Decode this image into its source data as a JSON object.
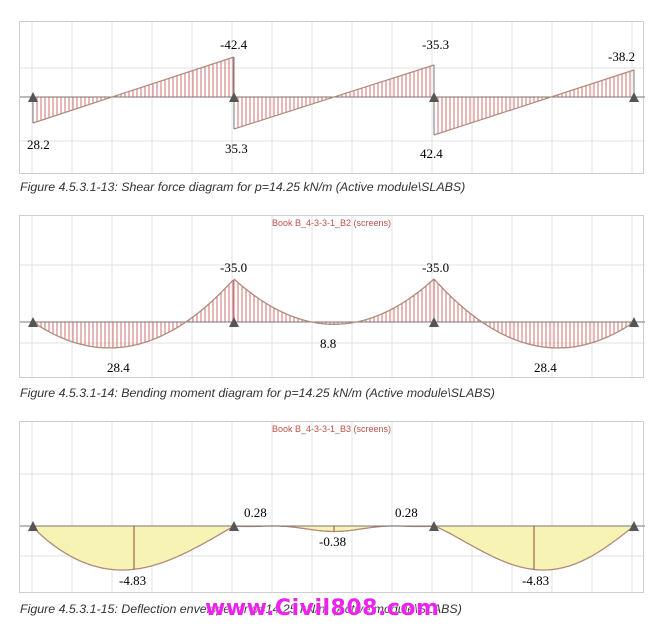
{
  "figures": [
    {
      "caption": "Figure 4.5.3.1-13: Shear force diagram for p=14.25 kN/m (Active module\\SLABS)",
      "panel_title": "",
      "values": {
        "v1": "-42.4",
        "v2": "-35.3",
        "v3": "-38.2",
        "v4": "28.2",
        "v5": "35.3",
        "v6": "42.4"
      }
    },
    {
      "caption": "Figure 4.5.3.1-14: Bending moment diagram for p=14.25 kN/m (Active module\\SLABS)",
      "panel_title": "Book B_4-3-3-1_B2 (screens)",
      "values": {
        "v1": "-35.0",
        "v2": "-35.0",
        "v3": "28.4",
        "v4": "8.8",
        "v5": "28.4"
      }
    },
    {
      "caption": "Figure 4.5.3.1-15: Deflection envelope for p=14.25 kN/m (Active module\\SLABS)",
      "panel_title": "Book B_4-3-3-1_B3 (screens)",
      "values": {
        "v1": "0.28",
        "v2": "0.28",
        "v3": "-0.38",
        "v4": "-4.83",
        "v5": "-4.83"
      }
    }
  ],
  "watermark": "www.Civil808.com",
  "colors": {
    "hatch": "#c0504d",
    "fill": "#f7f3b5",
    "curve": "#b08a7a",
    "support": "#555555"
  }
}
